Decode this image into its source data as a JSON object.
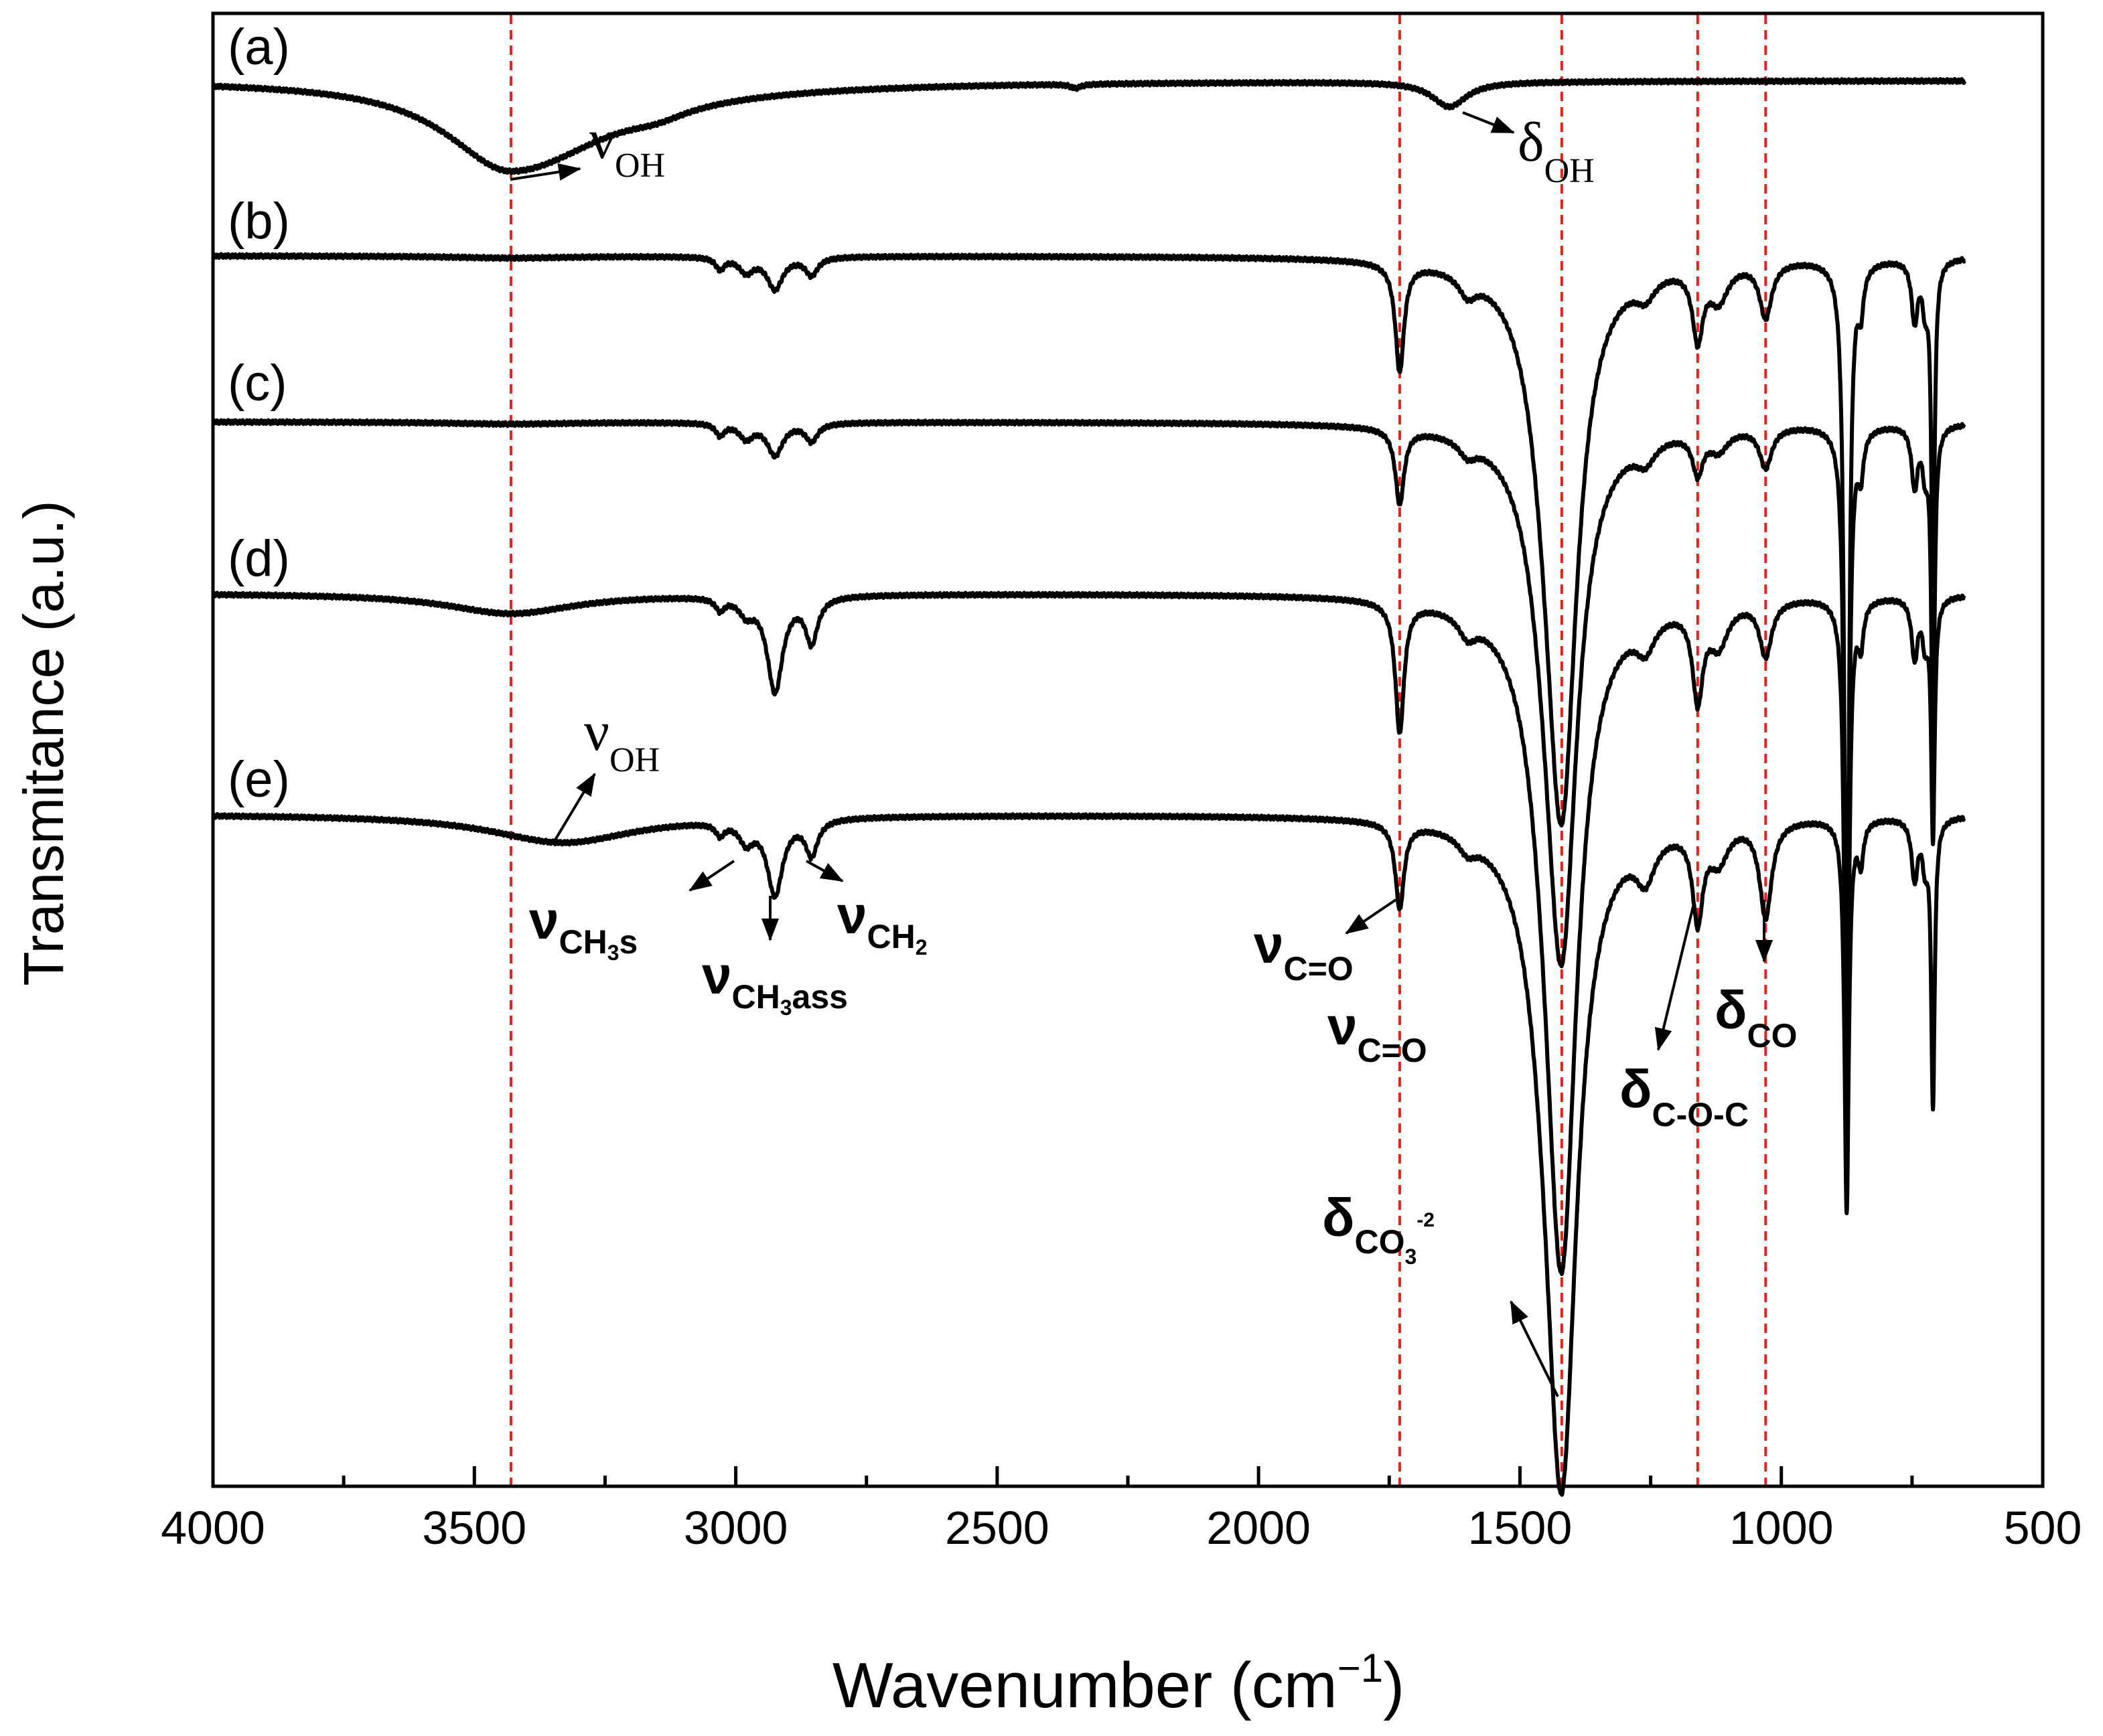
{
  "chart_data": {
    "type": "line",
    "title": "",
    "xlabel": "Wavenumber (cm",
    "xlabel_sup": "−1",
    "xlabel_close": ")",
    "ylabel": "Transmitance (a.u.)",
    "xlim": [
      4000,
      500
    ],
    "xticks": [
      4000,
      3500,
      3000,
      2500,
      2000,
      1500,
      1000,
      500
    ],
    "xtick_labels": [
      "4000",
      "3500",
      "3000",
      "2500",
      "2000",
      "1500",
      "1000",
      "500"
    ],
    "y_units": "a.u. (stacked, offset)",
    "grid": false,
    "reference_lines_cm1": [
      3430,
      1730,
      1420,
      1160,
      1030
    ],
    "reference_line_color": "#e8201a",
    "line_color": "#000000",
    "series": [
      {
        "name": "a",
        "label": "(a)",
        "baseline": 0.0,
        "end": 650,
        "bands": [
          {
            "c": 3430,
            "w": 150,
            "d": 0.9,
            "sk": 1.5
          },
          {
            "c": 3150,
            "w": 70,
            "d": 0.08
          },
          {
            "c": 1635,
            "w": 40,
            "d": 0.25
          },
          {
            "c": 2350,
            "w": 12,
            "d": 0.04
          }
        ]
      },
      {
        "name": "b",
        "label": "(b)",
        "baseline": 0.0,
        "end": 650,
        "bands": [
          {
            "c": 3430,
            "w": 140,
            "d": 0.02
          },
          {
            "c": 3030,
            "w": 10,
            "d": 0.12
          },
          {
            "c": 2980,
            "w": 16,
            "d": 0.15
          },
          {
            "c": 2925,
            "w": 18,
            "d": 0.32
          },
          {
            "c": 2855,
            "w": 14,
            "d": 0.18
          },
          {
            "c": 1730,
            "w": 10,
            "d": 1.08
          },
          {
            "c": 1600,
            "w": 20,
            "d": 0.2
          },
          {
            "c": 1450,
            "w": 40,
            "d": 0.7
          },
          {
            "c": 1420,
            "w": 35,
            "d": 5.2
          },
          {
            "c": 1260,
            "w": 22,
            "d": 0.2
          },
          {
            "c": 1160,
            "w": 12,
            "d": 0.7
          },
          {
            "c": 1120,
            "w": 22,
            "d": 0.35
          },
          {
            "c": 1030,
            "w": 14,
            "d": 0.55
          },
          {
            "c": 875,
            "w": 5,
            "d": 8.4
          },
          {
            "c": 848,
            "w": 6,
            "d": 0.4
          },
          {
            "c": 745,
            "w": 7,
            "d": 0.6
          },
          {
            "c": 725,
            "w": 6,
            "d": 0.4
          },
          {
            "c": 710,
            "w": 4,
            "d": 3.2
          }
        ]
      },
      {
        "name": "c",
        "label": "(c)",
        "baseline": 0.0,
        "end": 650,
        "bands": [
          {
            "c": 3430,
            "w": 140,
            "d": 0.02
          },
          {
            "c": 3030,
            "w": 10,
            "d": 0.12
          },
          {
            "c": 2980,
            "w": 16,
            "d": 0.15
          },
          {
            "c": 2925,
            "w": 18,
            "d": 0.32
          },
          {
            "c": 2855,
            "w": 14,
            "d": 0.18
          },
          {
            "c": 1730,
            "w": 10,
            "d": 0.75
          },
          {
            "c": 1600,
            "w": 20,
            "d": 0.15
          },
          {
            "c": 1450,
            "w": 40,
            "d": 0.7
          },
          {
            "c": 1420,
            "w": 35,
            "d": 4.95
          },
          {
            "c": 1260,
            "w": 22,
            "d": 0.2
          },
          {
            "c": 1160,
            "w": 12,
            "d": 0.4
          },
          {
            "c": 1120,
            "w": 22,
            "d": 0.2
          },
          {
            "c": 1030,
            "w": 14,
            "d": 0.4
          },
          {
            "c": 875,
            "w": 5,
            "d": 7.1
          },
          {
            "c": 848,
            "w": 6,
            "d": 0.4
          },
          {
            "c": 745,
            "w": 7,
            "d": 0.6
          },
          {
            "c": 725,
            "w": 6,
            "d": 0.4
          },
          {
            "c": 710,
            "w": 4,
            "d": 3.1
          }
        ]
      },
      {
        "name": "d",
        "label": "(d)",
        "baseline": 0.0,
        "end": 650,
        "bands": [
          {
            "c": 3430,
            "w": 150,
            "d": 0.2
          },
          {
            "c": 3030,
            "w": 10,
            "d": 0.12
          },
          {
            "c": 2980,
            "w": 16,
            "d": 0.15
          },
          {
            "c": 2925,
            "w": 18,
            "d": 0.95
          },
          {
            "c": 2855,
            "w": 14,
            "d": 0.45
          },
          {
            "c": 1730,
            "w": 10,
            "d": 1.3
          },
          {
            "c": 1600,
            "w": 20,
            "d": 0.2
          },
          {
            "c": 1450,
            "w": 40,
            "d": 0.7
          },
          {
            "c": 1420,
            "w": 35,
            "d": 6.3
          },
          {
            "c": 1260,
            "w": 22,
            "d": 0.3
          },
          {
            "c": 1160,
            "w": 12,
            "d": 0.9
          },
          {
            "c": 1120,
            "w": 22,
            "d": 0.4
          },
          {
            "c": 1030,
            "w": 14,
            "d": 0.55
          },
          {
            "c": 875,
            "w": 5,
            "d": 5.7
          },
          {
            "c": 848,
            "w": 6,
            "d": 0.4
          },
          {
            "c": 745,
            "w": 7,
            "d": 0.6
          },
          {
            "c": 725,
            "w": 6,
            "d": 0.4
          },
          {
            "c": 710,
            "w": 4,
            "d": 2.4
          }
        ]
      },
      {
        "name": "e",
        "label": "(e)",
        "baseline": 0.0,
        "end": 650,
        "bands": [
          {
            "c": 3330,
            "w": 170,
            "d": 0.28
          },
          {
            "c": 3030,
            "w": 10,
            "d": 0.12
          },
          {
            "c": 2980,
            "w": 16,
            "d": 0.2
          },
          {
            "c": 2925,
            "w": 18,
            "d": 0.75
          },
          {
            "c": 2855,
            "w": 14,
            "d": 0.35
          },
          {
            "c": 1730,
            "w": 10,
            "d": 0.85
          },
          {
            "c": 1600,
            "w": 20,
            "d": 0.15
          },
          {
            "c": 1450,
            "w": 40,
            "d": 0.7
          },
          {
            "c": 1420,
            "w": 35,
            "d": 6.3
          },
          {
            "c": 1260,
            "w": 22,
            "d": 0.4
          },
          {
            "c": 1160,
            "w": 12,
            "d": 0.9
          },
          {
            "c": 1120,
            "w": 22,
            "d": 0.35
          },
          {
            "c": 1030,
            "w": 14,
            "d": 0.95
          },
          {
            "c": 875,
            "w": 5,
            "d": 3.9
          },
          {
            "c": 848,
            "w": 6,
            "d": 0.4
          },
          {
            "c": 745,
            "w": 7,
            "d": 0.6
          },
          {
            "c": 725,
            "w": 6,
            "d": 0.4
          },
          {
            "c": 710,
            "w": 4,
            "d": 2.85
          }
        ]
      }
    ],
    "annotations": [
      {
        "main": "ν",
        "sub": "OH",
        "series": "a"
      },
      {
        "main": "δ",
        "sub": "OH",
        "series": "a"
      },
      {
        "main": "ν",
        "sub": "OH",
        "series": "e"
      },
      {
        "main": "ν",
        "sub": "CH",
        "sub2": "3",
        "sub3": "s",
        "series": "e"
      },
      {
        "main": "ν",
        "sub": "CH",
        "sub2": "3",
        "sub3": "ass",
        "series": "e"
      },
      {
        "main": "ν",
        "sub": "CH",
        "sub2": "2",
        "series": "e"
      },
      {
        "main": "ν",
        "sub": "C=O",
        "series": "e"
      },
      {
        "main": "ν",
        "sub": "C=O",
        "series": "d"
      },
      {
        "main": "δ",
        "sub": "CO",
        "sub2": "3",
        "sup": "-2",
        "series": "e"
      },
      {
        "main": "δ",
        "sub": "C-O-C",
        "series": "e"
      },
      {
        "main": "δ",
        "sub": "CO",
        "series": "e"
      }
    ]
  }
}
